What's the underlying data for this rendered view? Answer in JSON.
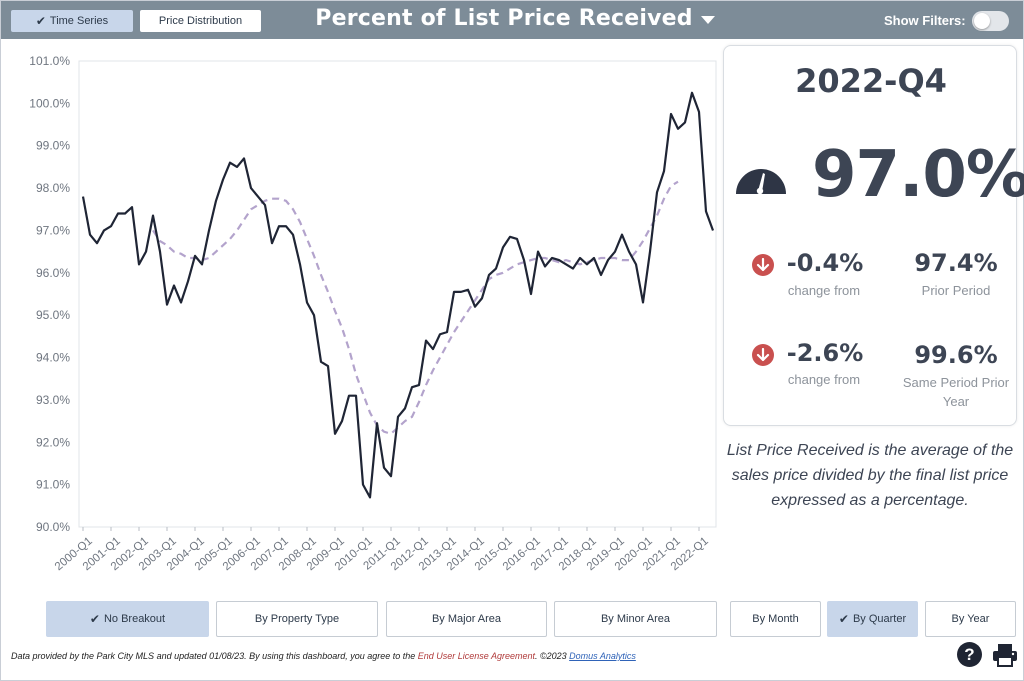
{
  "header": {
    "tabs": [
      {
        "label": "Time Series",
        "selected": true
      },
      {
        "label": "Price Distribution",
        "selected": false
      }
    ],
    "title": "Percent of List Price Received",
    "filters_label": "Show Filters:",
    "filters_on": false
  },
  "stats": {
    "period": "2022-Q4",
    "value": "97.0%",
    "change_prior": {
      "delta": "-0.4%",
      "delta_label": "change from",
      "value": "97.4%",
      "value_label": "Prior Period"
    },
    "change_year": {
      "delta": "-2.6%",
      "delta_label": "change from",
      "value": "99.6%",
      "value_label_1": "Same Period Prior",
      "value_label_2": "Year"
    }
  },
  "description": {
    "line1": "List Price Received is the average of the",
    "line2": "sales price divided by the final list price",
    "line3": "expressed as a percentage."
  },
  "breakout_buttons": [
    {
      "label": "No Breakout",
      "selected": true
    },
    {
      "label": "By Property Type",
      "selected": false
    },
    {
      "label": "By Major Area",
      "selected": false
    },
    {
      "label": "By Minor Area",
      "selected": false
    }
  ],
  "period_buttons": [
    {
      "label": "By Month",
      "selected": false
    },
    {
      "label": "By Quarter",
      "selected": true
    },
    {
      "label": "By Year",
      "selected": false
    }
  ],
  "footer": {
    "text_1": "Data provided by the Park City MLS and updated 01/08/23.  By using this dashboard, you agree to the ",
    "license": "End User License Agreement",
    "text_2": ".  ©2023 ",
    "brand": "Domus Analytics"
  },
  "icons": {
    "check": "check-icon",
    "gauge": "gauge-icon",
    "down": "arrow-down-circle-icon",
    "help": "question-circle-icon",
    "print": "printer-icon"
  },
  "colors": {
    "header_bg": "#7d8c98",
    "selected_bg": "#c8d6ea",
    "series_main": "#1f2535",
    "series_trend": "#b3a3cc",
    "down_arrow": "#c9504f",
    "text_dark": "#3d4554"
  },
  "chart_data": {
    "type": "line",
    "ylim": [
      90,
      101
    ],
    "y_ticks": [
      "90.0%",
      "91.0%",
      "92.0%",
      "93.0%",
      "94.0%",
      "95.0%",
      "96.0%",
      "97.0%",
      "98.0%",
      "99.0%",
      "100.0%",
      "101.0%"
    ],
    "x_tick_labels": [
      "2000-Q1",
      "2001-Q1",
      "2002-Q1",
      "2003-Q1",
      "2004-Q1",
      "2005-Q1",
      "2006-Q1",
      "2007-Q1",
      "2008-Q1",
      "2009-Q1",
      "2010-Q1",
      "2011-Q1",
      "2012-Q1",
      "2013-Q1",
      "2014-Q1",
      "2015-Q1",
      "2016-Q1",
      "2017-Q1",
      "2018-Q1",
      "2019-Q1",
      "2020-Q1",
      "2021-Q1",
      "2022-Q1"
    ],
    "quarters_start": "2000-Q1",
    "series": [
      {
        "values": [
          97.8,
          96.9,
          96.7,
          97.0,
          97.1,
          97.4,
          97.4,
          97.55,
          96.2,
          96.5,
          97.35,
          96.5,
          95.25,
          95.7,
          95.3,
          95.8,
          96.4,
          96.2,
          97.0,
          97.7,
          98.2,
          98.6,
          98.5,
          98.7,
          98.0,
          97.8,
          97.6,
          96.7,
          97.1,
          97.1,
          96.9,
          96.2,
          95.3,
          95.0,
          93.9,
          93.8,
          92.2,
          92.5,
          93.1,
          93.1,
          91.0,
          90.7,
          92.45,
          91.4,
          91.2,
          92.6,
          92.8,
          93.3,
          93.35,
          94.4,
          94.2,
          94.55,
          94.6,
          95.55,
          95.55,
          95.6,
          95.2,
          95.4,
          95.95,
          96.1,
          96.6,
          96.85,
          96.8,
          96.3,
          95.5,
          96.5,
          96.15,
          96.35,
          96.3,
          96.2,
          96.1,
          96.35,
          96.2,
          96.35,
          95.95,
          96.3,
          96.5,
          96.9,
          96.5,
          96.2,
          95.3,
          96.5,
          97.9,
          98.4,
          99.75,
          99.4,
          99.55,
          100.25,
          99.8,
          97.45,
          97.0
        ]
      },
      {
        "line_style": "dashed",
        "values": [
          null,
          null,
          null,
          null,
          null,
          null,
          null,
          null,
          null,
          null,
          97.0,
          96.75,
          96.65,
          96.5,
          96.45,
          96.35,
          96.35,
          96.3,
          96.35,
          96.5,
          96.65,
          96.8,
          97.0,
          97.25,
          97.5,
          97.6,
          97.7,
          97.75,
          97.75,
          97.7,
          97.5,
          97.2,
          96.8,
          96.4,
          95.95,
          95.55,
          95.1,
          94.7,
          94.2,
          93.6,
          93.15,
          92.7,
          92.4,
          92.25,
          92.2,
          92.35,
          92.5,
          92.6,
          92.95,
          93.35,
          93.7,
          94.0,
          94.3,
          94.6,
          94.85,
          95.1,
          95.35,
          95.6,
          95.85,
          95.95,
          96.0,
          96.1,
          96.2,
          96.25,
          96.3,
          96.35,
          96.35,
          96.3,
          96.25,
          96.3,
          96.25,
          96.2,
          96.25,
          96.3,
          96.35,
          96.35,
          96.35,
          96.3,
          96.3,
          96.5,
          96.75,
          97.05,
          97.35,
          97.75,
          98.05,
          98.15
        ]
      }
    ],
    "xlabel": "",
    "ylabel": "",
    "grid": false
  }
}
